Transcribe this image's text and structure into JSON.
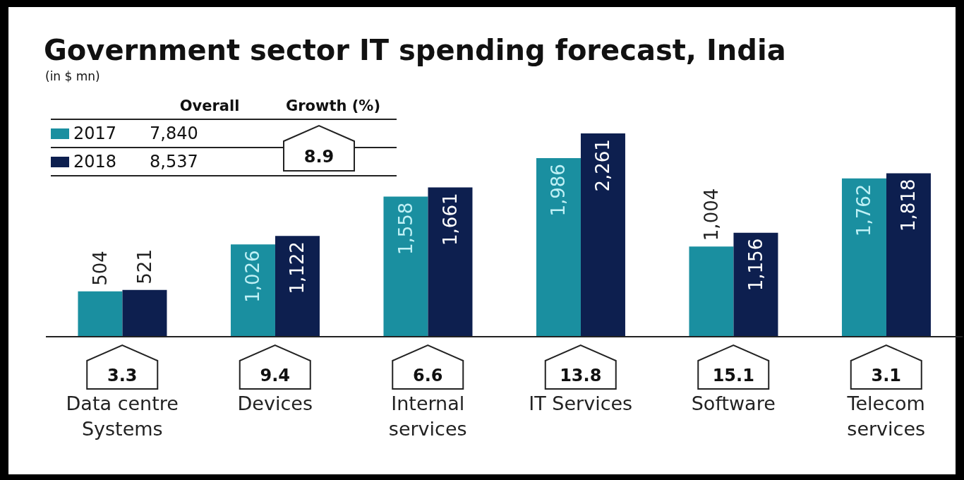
{
  "chart_data": {
    "type": "bar",
    "title": "Government sector IT spending forecast, India",
    "subtitle": "(in $ mn)",
    "categories": [
      "Data centre Systems",
      "Devices",
      "Internal services",
      "IT Services",
      "Software",
      "Telecom services"
    ],
    "series": [
      {
        "name": "2017",
        "color": "#1a8fa0",
        "values": [
          504,
          1026,
          1558,
          1986,
          1004,
          1762
        ],
        "value_labels": [
          "504",
          "1,026",
          "1,558",
          "1,986",
          "1,004",
          "1,762"
        ]
      },
      {
        "name": "2018",
        "color": "#0d1f4f",
        "values": [
          521,
          1122,
          1661,
          2261,
          1156,
          1818
        ],
        "value_labels": [
          "521",
          "1,122",
          "1,661",
          "2,261",
          "1,156",
          "1,818"
        ]
      }
    ],
    "legend": "top left",
    "grid": false,
    "annotations": [
      "Overall",
      "Growth (%)",
      "7,840",
      "8,537",
      "8.9",
      "3.3",
      "9.4",
      "6.6",
      "13.8",
      "15.1",
      "3.1"
    ]
  }
}
